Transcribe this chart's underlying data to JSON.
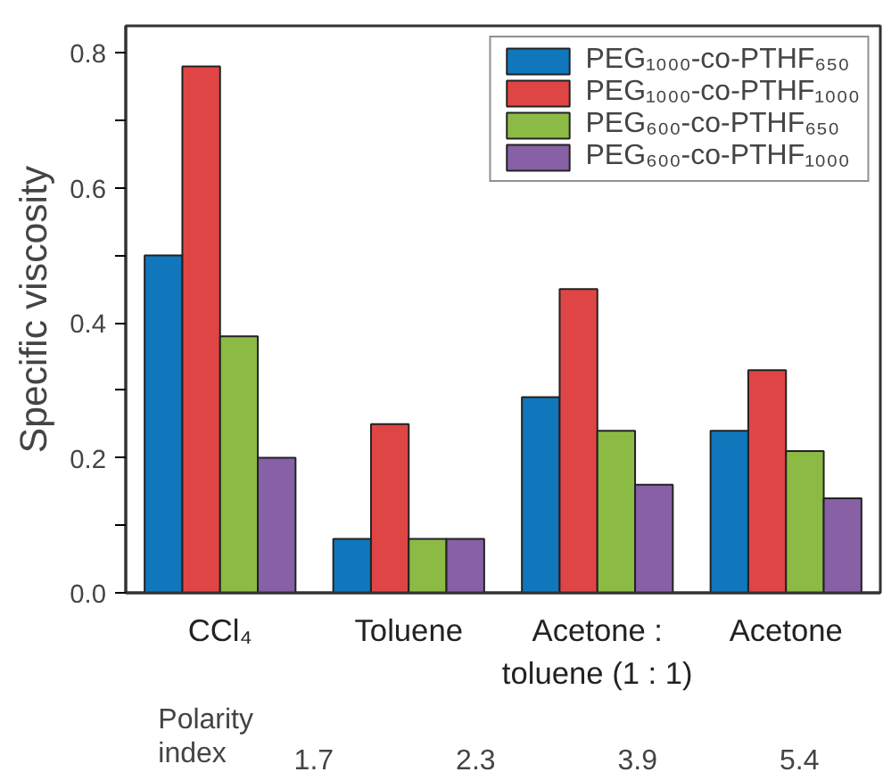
{
  "chart_data": {
    "type": "bar",
    "ylabel": "Specific viscosity",
    "categories": [
      "CCl₄",
      "Toluene",
      "Acetone :\ntoluene (1 : 1)",
      "Acetone"
    ],
    "series": [
      {
        "name": "PEG₁₀₀₀-co-PTHF₆₅₀",
        "color": "#1077bc",
        "values": [
          0.5,
          0.08,
          0.29,
          0.24
        ]
      },
      {
        "name": "PEG₁₀₀₀-co-PTHF₁₀₀₀",
        "color": "#e04545",
        "values": [
          0.78,
          0.25,
          0.45,
          0.33
        ]
      },
      {
        "name": "PEG₆₀₀-co-PTHF₆₅₀",
        "color": "#8cbb45",
        "values": [
          0.38,
          0.08,
          0.24,
          0.21
        ]
      },
      {
        "name": "PEG₆₀₀-co-PTHF₁₀₀₀",
        "color": "#8760a6",
        "values": [
          0.2,
          0.08,
          0.16,
          0.14
        ]
      }
    ],
    "ylim": [
      0,
      0.84
    ],
    "yticks": [
      {
        "value": 0.0,
        "label": "0.0"
      },
      {
        "value": 0.1,
        "label": null
      },
      {
        "value": 0.2,
        "label": "0.2"
      },
      {
        "value": 0.3,
        "label": null
      },
      {
        "value": 0.4,
        "label": "0.4"
      },
      {
        "value": 0.5,
        "label": null
      },
      {
        "value": 0.6,
        "label": "0.6"
      },
      {
        "value": 0.7,
        "label": null
      },
      {
        "value": 0.8,
        "label": "0.8"
      }
    ],
    "annotations": [
      "Polarity\nindex",
      "1.7",
      "2.3",
      "3.9",
      "5.4"
    ],
    "grid": false,
    "legend": "top right"
  }
}
